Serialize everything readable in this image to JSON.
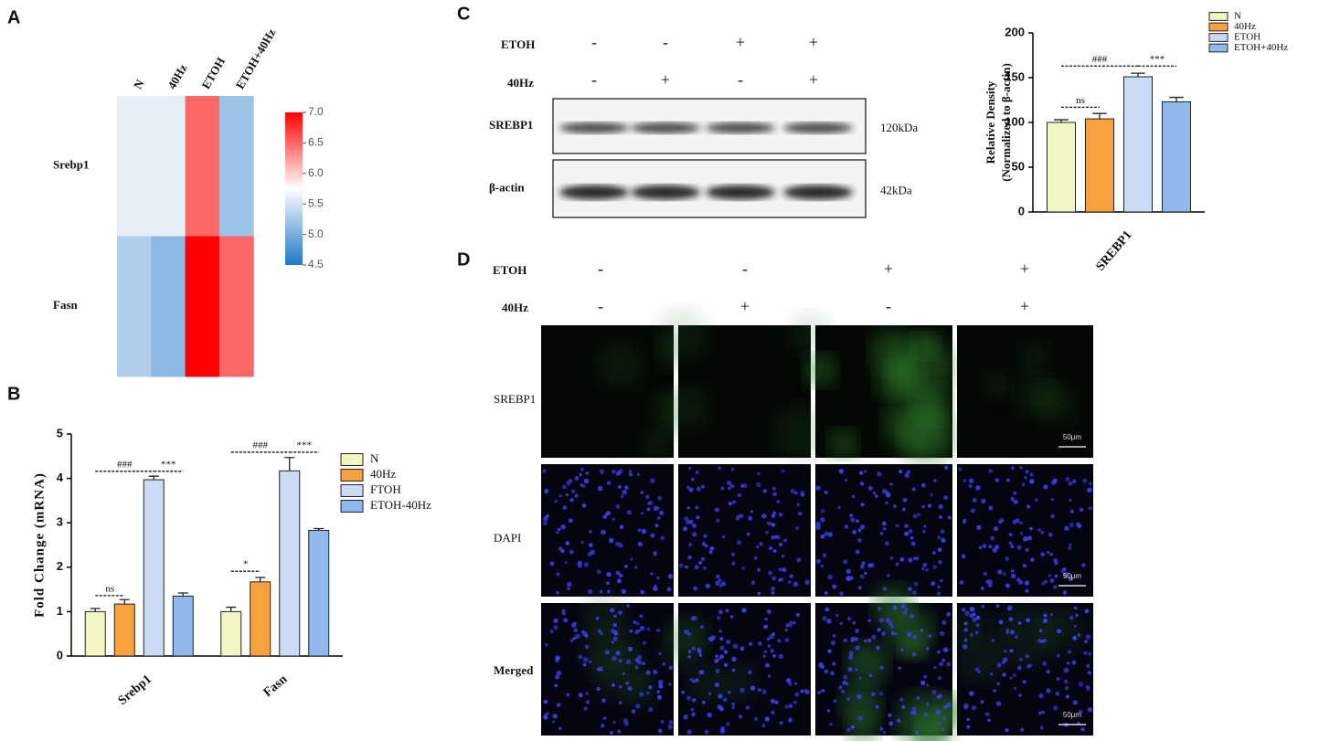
{
  "panel_labels": [
    "A",
    "B",
    "C",
    "D"
  ],
  "chart_data": [
    {
      "type": "heatmap",
      "columns": [
        "N",
        "40Hz",
        "ETOH",
        "ETOH+40Hz"
      ],
      "rows": [
        "Srebp1",
        "Fasn"
      ],
      "values": [
        [
          5.6,
          5.6,
          6.5,
          5.2
        ],
        [
          5.3,
          5.1,
          7.0,
          6.5
        ]
      ],
      "zlim": [
        4.5,
        7.0
      ],
      "zticks": [
        4.5,
        {
          "value": 5,
          "label": "5.0"
        },
        5.5,
        {
          "value": 6,
          "label": "6.0"
        },
        6.5,
        {
          "value": 7,
          "label": "7.0"
        }
      ],
      "colormap": [
        "#1f78c8",
        "#ffffff",
        "#ff0000"
      ]
    },
    {
      "type": "bar",
      "categories": [
        "Srebp1",
        "Fasn"
      ],
      "ylabel": "Fold Change (mRNA)",
      "series": [
        {
          "name": "N",
          "color": "#f1f6c2",
          "values": [
            1.0,
            1.0
          ],
          "errors": [
            0.07,
            0.1
          ]
        },
        {
          "name": "40Hz",
          "color": "#f7a23e",
          "values": [
            1.17,
            1.67
          ],
          "errors": [
            0.1,
            0.1
          ]
        },
        {
          "name": "FTOH",
          "color": "#c9dbf5",
          "values": [
            3.97,
            4.17
          ],
          "errors": [
            0.08,
            0.3
          ]
        },
        {
          "name": "ETOH-40Hz",
          "color": "#8fb8ef",
          "values": [
            1.35,
            2.83
          ],
          "errors": [
            0.07,
            0.04
          ]
        }
      ],
      "ylim": [
        0,
        5
      ],
      "yticks": [
        0,
        1,
        2,
        3,
        4,
        5
      ],
      "annotations": [
        {
          "text": "ns",
          "category": 0,
          "series": [
            0,
            1
          ],
          "y": 1.36
        },
        {
          "text": "###",
          "category": 0,
          "series": [
            0,
            2
          ],
          "y": 4.16
        },
        {
          "text": "***",
          "category": 0,
          "series": [
            2,
            3
          ],
          "y": 4.16
        },
        {
          "text": "*",
          "category": 1,
          "series": [
            0,
            1
          ],
          "y": 1.91
        },
        {
          "text": "###",
          "category": 1,
          "series": [
            0,
            2
          ],
          "y": 4.59
        },
        {
          "text": "***",
          "category": 1,
          "series": [
            2,
            3
          ],
          "y": 4.59
        }
      ]
    },
    {
      "type": "bar",
      "categories": [
        "SREBP1"
      ],
      "ylabel": [
        "Relative Density",
        "(Normalized to β-actin)"
      ],
      "series": [
        {
          "name": "N",
          "color": "#f1f6c2",
          "values": [
            100
          ],
          "errors": [
            3
          ]
        },
        {
          "name": "40Hz",
          "color": "#f7a23e",
          "values": [
            104
          ],
          "errors": [
            6
          ]
        },
        {
          "name": "ETOH",
          "color": "#c9dbf5",
          "values": [
            151
          ],
          "errors": [
            4
          ]
        },
        {
          "name": "ETOH+40Hz",
          "color": "#8fb8ef",
          "values": [
            123
          ],
          "errors": [
            5
          ]
        }
      ],
      "ylim": [
        0,
        200
      ],
      "yticks": [
        0,
        50,
        100,
        150,
        200
      ],
      "annotations": [
        {
          "text": "ns",
          "category": 0,
          "series": [
            0,
            1
          ],
          "y": 117
        },
        {
          "text": "###",
          "category": 0,
          "series": [
            0,
            2
          ],
          "y": 163
        },
        {
          "text": "***",
          "category": 0,
          "series": [
            2,
            3
          ],
          "y": 163
        }
      ]
    }
  ],
  "blot": {
    "conditions": [
      {
        "label": "ETOH",
        "signs": [
          "-",
          "-",
          "+",
          "+"
        ]
      },
      {
        "label": "40Hz",
        "signs": [
          "-",
          "+",
          "-",
          "+"
        ]
      }
    ],
    "bands": [
      {
        "label": "SREBP1",
        "size": "120kDa"
      },
      {
        "label": "β-actin",
        "size": "42kDa"
      }
    ]
  },
  "microscopy": {
    "conditions": [
      {
        "label": "ETOH",
        "signs": [
          "-",
          "-",
          "+",
          "+"
        ]
      },
      {
        "label": "40Hz",
        "signs": [
          "-",
          "+",
          "-",
          "+"
        ]
      }
    ],
    "channels": [
      "SREBP1",
      "DAPI",
      "Merged"
    ],
    "scale_bar": "50μm"
  }
}
